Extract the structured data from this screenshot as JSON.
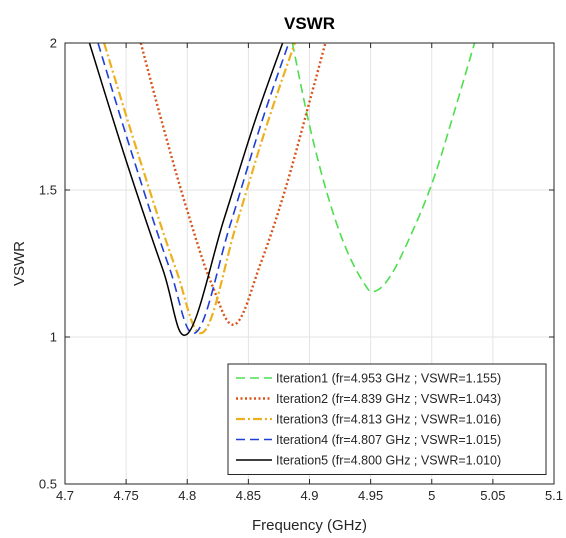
{
  "chart_data": {
    "type": "line",
    "title": "VSWR",
    "xlabel": "Frequency (GHz)",
    "ylabel": "VSWR",
    "xlim": [
      4.7,
      5.1
    ],
    "ylim": [
      0.5,
      2
    ],
    "xticks": [
      4.7,
      4.75,
      4.8,
      4.85,
      4.9,
      4.95,
      5,
      5.05,
      5.1
    ],
    "xtick_labels": [
      "4.7",
      "4.75",
      "4.8",
      "4.85",
      "4.9",
      "4.95",
      "5",
      "5.05",
      "5.1"
    ],
    "yticks": [
      0.5,
      1,
      1.5,
      2
    ],
    "ytick_labels": [
      "0.5",
      "1",
      "1.5",
      "2"
    ],
    "grid": true,
    "legend_position": "bottom-right",
    "series": [
      {
        "name": "Iteration1 (fr=4.953 GHz ; VSWR=1.155)",
        "color": "#4ddf4d",
        "style": "dashed",
        "fr": 4.953,
        "min": 1.155,
        "x": [
          4.886,
          4.9,
          4.915,
          4.93,
          4.945,
          4.953,
          4.965,
          4.98,
          5.0,
          5.018,
          5.035
        ],
        "y": [
          2.0,
          1.72,
          1.48,
          1.3,
          1.18,
          1.155,
          1.2,
          1.32,
          1.52,
          1.76,
          2.0
        ]
      },
      {
        "name": "Iteration2 (fr=4.839 GHz ; VSWR=1.043)",
        "color": "#d95319",
        "style": "dotted",
        "fr": 4.839,
        "min": 1.043,
        "x": [
          4.762,
          4.78,
          4.8,
          4.82,
          4.839,
          4.86,
          4.88,
          4.9,
          4.913
        ],
        "y": [
          2.0,
          1.72,
          1.43,
          1.18,
          1.043,
          1.25,
          1.5,
          1.8,
          2.0
        ]
      },
      {
        "name": "Iteration3 (fr=4.813 GHz ; VSWR=1.016)",
        "color": "#edb120",
        "style": "dashdot",
        "fr": 4.813,
        "min": 1.016,
        "x": [
          4.732,
          4.76,
          4.79,
          4.813,
          4.84,
          4.865,
          4.888
        ],
        "y": [
          2.0,
          1.62,
          1.24,
          1.016,
          1.38,
          1.72,
          2.0
        ]
      },
      {
        "name": "Iteration4 (fr=4.807 GHz ; VSWR=1.015)",
        "color": "#1f3fd6",
        "style": "dashed",
        "fr": 4.807,
        "min": 1.015,
        "x": [
          4.727,
          4.755,
          4.785,
          4.807,
          4.835,
          4.86,
          4.883
        ],
        "y": [
          2.0,
          1.62,
          1.24,
          1.015,
          1.38,
          1.72,
          2.0
        ]
      },
      {
        "name": "Iteration5 (fr=4.800 GHz ; VSWR=1.010)",
        "color": "#000000",
        "style": "solid",
        "fr": 4.8,
        "min": 1.01,
        "x": [
          4.72,
          4.75,
          4.78,
          4.8,
          4.83,
          4.855,
          4.878
        ],
        "y": [
          2.0,
          1.6,
          1.23,
          1.01,
          1.4,
          1.73,
          2.0
        ]
      }
    ]
  }
}
